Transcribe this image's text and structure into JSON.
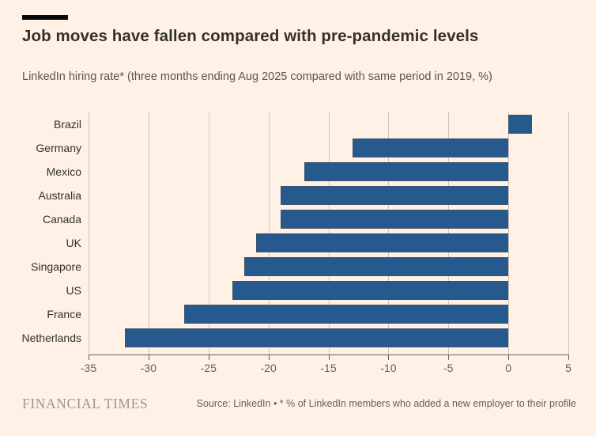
{
  "header": {
    "title": "Job moves have fallen compared with pre-pandemic levels",
    "subtitle": "LinkedIn hiring rate* (three months ending Aug 2025 compared with same period in 2019, %)"
  },
  "chart_data": {
    "type": "bar",
    "orientation": "horizontal",
    "title": "Job moves have fallen compared with pre-pandemic levels",
    "subtitle": "LinkedIn hiring rate* (three months ending Aug 2025 compared with same period in 2019, %)",
    "categories": [
      "Brazil",
      "Germany",
      "Mexico",
      "Australia",
      "Canada",
      "UK",
      "Singapore",
      "US",
      "France",
      "Netherlands"
    ],
    "values": [
      2,
      -13,
      -17,
      -19,
      -19,
      -21,
      -22,
      -23,
      -27,
      -32
    ],
    "xlabel": "",
    "ylabel": "",
    "xlim": [
      -35,
      5
    ],
    "xticks": [
      -35,
      -30,
      -25,
      -20,
      -15,
      -10,
      -5,
      0,
      5
    ],
    "grid": true,
    "legend": false,
    "bar_color": "#265a8e"
  },
  "footer": {
    "brand": "FINANCIAL TIMES",
    "source": "Source: LinkedIn • * % of LinkedIn members who added a new employer to their profile"
  },
  "colors": {
    "background": "#fff1e5",
    "accent_bar": "#0a0a0a",
    "bar": "#265a8e",
    "text_dark": "#33302e",
    "text_muted": "#66605c",
    "gridline": "#cfc5bb",
    "axis": "#66605c",
    "brand_logo": "#a39487"
  }
}
